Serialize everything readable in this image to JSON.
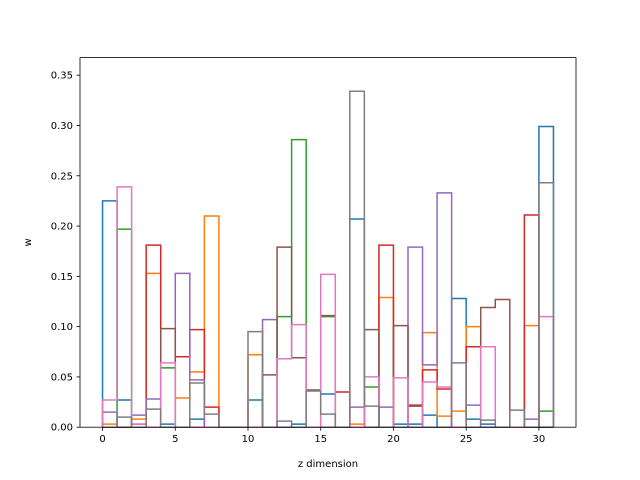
{
  "chart_data": {
    "type": "step-histogram",
    "title": "",
    "xlabel": "z dimension",
    "ylabel": "w",
    "xlim": [
      -1.55,
      32.55
    ],
    "ylim": [
      0,
      0.3675
    ],
    "xticks": [
      0,
      5,
      10,
      15,
      20,
      25,
      30
    ],
    "yticks": [
      0.0,
      0.05,
      0.1,
      0.15,
      0.2,
      0.25,
      0.3,
      0.35
    ],
    "ytick_labels": [
      "0.00",
      "0.05",
      "0.10",
      "0.15",
      "0.20",
      "0.25",
      "0.30",
      "0.35"
    ],
    "bin_edges": [
      0,
      1,
      2,
      3,
      4,
      5,
      6,
      7,
      8,
      9,
      10,
      11,
      12,
      13,
      14,
      15,
      16,
      17,
      18,
      19,
      20,
      21,
      22,
      23,
      24,
      25,
      26,
      27,
      28,
      29,
      30,
      31
    ],
    "series": [
      {
        "color": "#1f77b4",
        "values": [
          0.225,
          0.027,
          0.003,
          0.0,
          0.003,
          0.0,
          0.008,
          0.0,
          0.0,
          0.0,
          0.027,
          0.0,
          0.0,
          0.003,
          0.0,
          0.033,
          0.0,
          0.207,
          0.0,
          0.0,
          0.003,
          0.003,
          0.012,
          0.0,
          0.128,
          0.008,
          0.003,
          0.0,
          0.0,
          0.0,
          0.299
        ]
      },
      {
        "color": "#ff7f0e",
        "values": [
          0.003,
          0.0,
          0.008,
          0.153,
          0.0,
          0.029,
          0.055,
          0.21,
          0.0,
          0.0,
          0.072,
          0.0,
          0.0,
          0.0,
          0.0,
          0.0,
          0.0,
          0.003,
          0.0,
          0.129,
          0.0,
          0.0,
          0.094,
          0.011,
          0.016,
          0.1,
          0.0,
          0.0,
          0.0,
          0.101,
          0.0
        ]
      },
      {
        "color": "#2ca02c",
        "values": [
          0.0,
          0.197,
          0.0,
          0.0,
          0.059,
          0.0,
          0.0,
          0.0,
          0.0,
          0.0,
          0.0,
          0.0,
          0.11,
          0.286,
          0.0,
          0.11,
          0.0,
          0.0,
          0.04,
          0.0,
          0.0,
          0.0,
          0.0,
          0.0,
          0.0,
          0.0,
          0.0,
          0.0,
          0.0,
          0.0,
          0.016
        ]
      },
      {
        "color": "#d62728",
        "values": [
          0.0,
          0.0,
          0.0,
          0.181,
          0.0,
          0.07,
          0.097,
          0.02,
          0.0,
          0.0,
          0.0,
          0.0,
          0.0,
          0.0,
          0.0,
          0.0,
          0.035,
          0.0,
          0.0,
          0.181,
          0.0,
          0.022,
          0.057,
          0.038,
          0.0,
          0.08,
          0.0,
          0.0,
          0.0,
          0.211,
          0.0
        ]
      },
      {
        "color": "#9467bd",
        "values": [
          0.015,
          0.0,
          0.012,
          0.028,
          0.0,
          0.153,
          0.047,
          0.0,
          0.0,
          0.0,
          0.0,
          0.107,
          0.0,
          0.0,
          0.0,
          0.0,
          0.0,
          0.02,
          0.0,
          0.02,
          0.0,
          0.179,
          0.062,
          0.233,
          0.0,
          0.022,
          0.0,
          0.0,
          0.0,
          0.008,
          0.0
        ]
      },
      {
        "color": "#8c564b",
        "values": [
          0.0,
          0.0,
          0.0,
          0.0,
          0.098,
          0.0,
          0.0,
          0.0,
          0.0,
          0.0,
          0.0,
          0.052,
          0.179,
          0.069,
          0.037,
          0.111,
          0.0,
          0.0,
          0.097,
          0.0,
          0.101,
          0.021,
          0.0,
          0.0,
          0.0,
          0.0,
          0.119,
          0.127,
          0.0,
          0.0,
          0.0
        ]
      },
      {
        "color": "#e377c2",
        "values": [
          0.027,
          0.239,
          0.003,
          0.0,
          0.064,
          0.0,
          0.0,
          0.0,
          0.0,
          0.0,
          0.0,
          0.0,
          0.068,
          0.102,
          0.0,
          0.152,
          0.0,
          0.0,
          0.05,
          0.0,
          0.049,
          0.0,
          0.045,
          0.04,
          0.0,
          0.0,
          0.08,
          0.0,
          0.0,
          0.0,
          0.11
        ]
      },
      {
        "color": "#7f7f7f",
        "values": [
          0.0,
          0.01,
          0.0,
          0.018,
          0.0,
          0.0,
          0.044,
          0.013,
          0.0,
          0.0,
          0.095,
          0.0,
          0.006,
          0.0,
          0.036,
          0.013,
          0.0,
          0.334,
          0.021,
          0.0,
          0.0,
          0.0,
          0.0,
          0.0,
          0.064,
          0.0,
          0.007,
          0.0,
          0.017,
          0.0,
          0.243
        ]
      }
    ]
  }
}
